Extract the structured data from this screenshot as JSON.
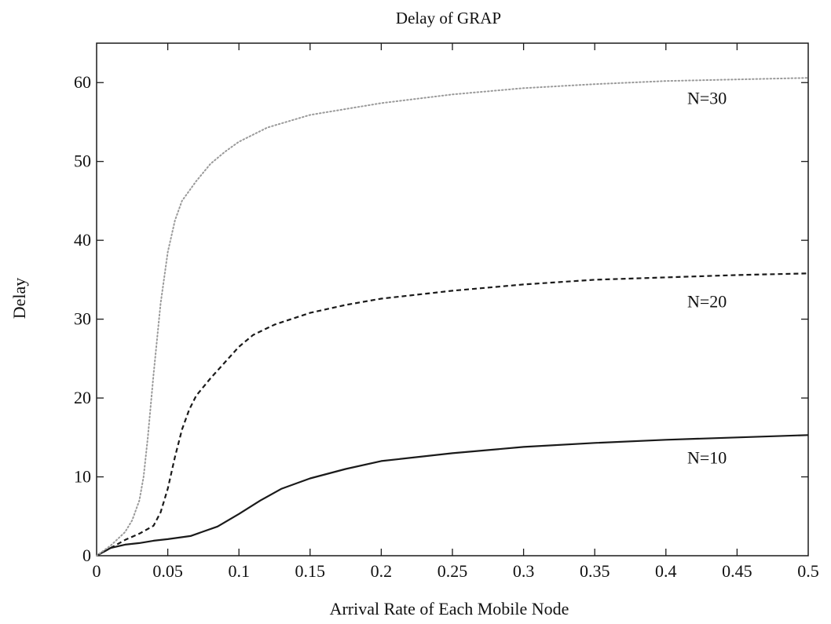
{
  "chart_data": {
    "type": "line",
    "title": "Delay of GRAP",
    "xlabel": "Arrival Rate of Each Mobile Node",
    "ylabel": "Delay",
    "xlim": [
      0,
      0.5
    ],
    "ylim": [
      0,
      65
    ],
    "x_ticks": [
      "0",
      "0.05",
      "0.1",
      "0.15",
      "0.2",
      "0.25",
      "0.3",
      "0.35",
      "0.4",
      "0.45",
      "0.5"
    ],
    "x_tick_values": [
      0,
      0.05,
      0.1,
      0.15,
      0.2,
      0.25,
      0.3,
      0.35,
      0.4,
      0.45,
      0.5
    ],
    "y_ticks": [
      "0",
      "10",
      "20",
      "30",
      "40",
      "50",
      "60"
    ],
    "y_tick_values": [
      0,
      10,
      20,
      30,
      40,
      50,
      60
    ],
    "grid": false,
    "series": [
      {
        "name": "N=10",
        "style": "solid",
        "color": "#1a1a1a",
        "label_at": [
          0.415,
          11.7
        ],
        "points": [
          [
            0,
            0
          ],
          [
            0.01,
            1.0
          ],
          [
            0.02,
            1.4
          ],
          [
            0.03,
            1.6
          ],
          [
            0.04,
            1.9
          ],
          [
            0.05,
            2.1
          ],
          [
            0.066,
            2.5
          ],
          [
            0.085,
            3.7
          ],
          [
            0.1,
            5.3
          ],
          [
            0.115,
            7.0
          ],
          [
            0.13,
            8.5
          ],
          [
            0.15,
            9.8
          ],
          [
            0.175,
            11.0
          ],
          [
            0.2,
            12.0
          ],
          [
            0.25,
            13.0
          ],
          [
            0.3,
            13.8
          ],
          [
            0.35,
            14.3
          ],
          [
            0.4,
            14.7
          ],
          [
            0.45,
            15.0
          ],
          [
            0.5,
            15.3
          ]
        ]
      },
      {
        "name": "N=20",
        "style": "dashed",
        "color": "#1a1a1a",
        "label_at": [
          0.415,
          31.5
        ],
        "points": [
          [
            0,
            0
          ],
          [
            0.01,
            1.0
          ],
          [
            0.02,
            2.0
          ],
          [
            0.03,
            2.8
          ],
          [
            0.04,
            3.8
          ],
          [
            0.045,
            5.5
          ],
          [
            0.05,
            8.5
          ],
          [
            0.055,
            12.5
          ],
          [
            0.06,
            16.0
          ],
          [
            0.065,
            18.5
          ],
          [
            0.07,
            20.3
          ],
          [
            0.08,
            22.5
          ],
          [
            0.09,
            24.5
          ],
          [
            0.1,
            26.5
          ],
          [
            0.11,
            28.0
          ],
          [
            0.125,
            29.3
          ],
          [
            0.15,
            30.8
          ],
          [
            0.175,
            31.8
          ],
          [
            0.2,
            32.6
          ],
          [
            0.25,
            33.6
          ],
          [
            0.3,
            34.4
          ],
          [
            0.35,
            35.0
          ],
          [
            0.4,
            35.3
          ],
          [
            0.45,
            35.6
          ],
          [
            0.5,
            35.8
          ]
        ]
      },
      {
        "name": "N=30",
        "style": "dotted",
        "color": "#9a9a9a",
        "label_at": [
          0.415,
          57.3
        ],
        "points": [
          [
            0,
            0
          ],
          [
            0.01,
            1.3
          ],
          [
            0.02,
            3.0
          ],
          [
            0.025,
            4.5
          ],
          [
            0.03,
            7.0
          ],
          [
            0.033,
            10.0
          ],
          [
            0.036,
            15.0
          ],
          [
            0.04,
            23.0
          ],
          [
            0.045,
            32.0
          ],
          [
            0.05,
            38.5
          ],
          [
            0.055,
            42.5
          ],
          [
            0.06,
            45.0
          ],
          [
            0.07,
            47.5
          ],
          [
            0.08,
            49.7
          ],
          [
            0.09,
            51.2
          ],
          [
            0.1,
            52.5
          ],
          [
            0.12,
            54.3
          ],
          [
            0.15,
            55.9
          ],
          [
            0.2,
            57.4
          ],
          [
            0.25,
            58.5
          ],
          [
            0.3,
            59.3
          ],
          [
            0.35,
            59.8
          ],
          [
            0.4,
            60.2
          ],
          [
            0.45,
            60.4
          ],
          [
            0.5,
            60.6
          ]
        ]
      }
    ]
  }
}
